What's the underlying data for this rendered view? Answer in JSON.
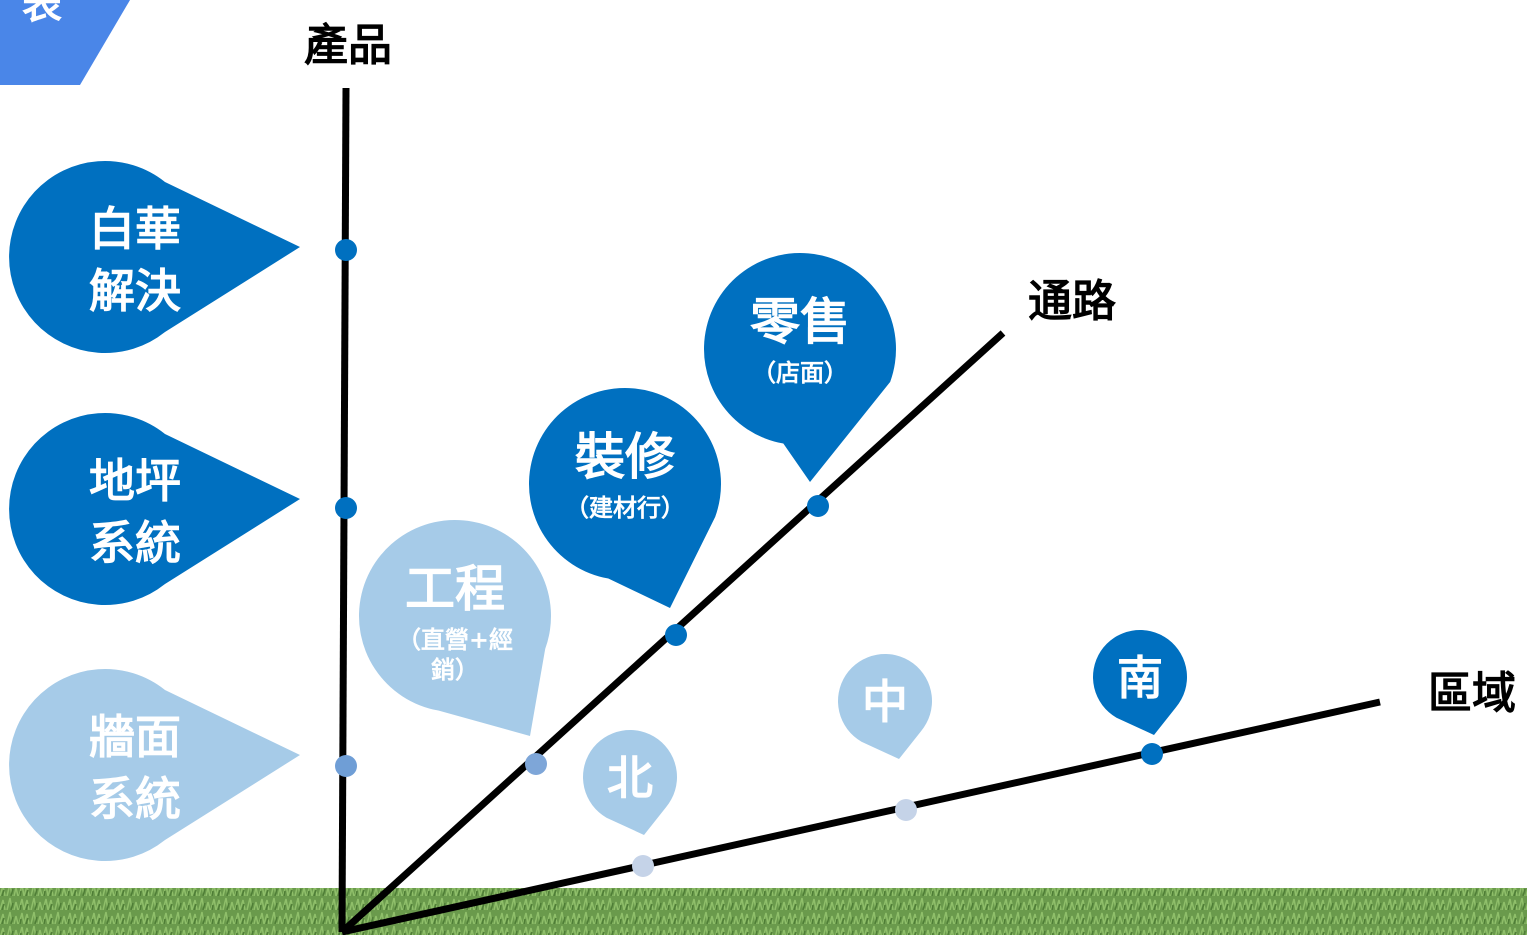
{
  "corner_tag": {
    "text": "表"
  },
  "axes": {
    "product": {
      "label": "產品"
    },
    "channel": {
      "label": "通路"
    },
    "region": {
      "label": "區域"
    }
  },
  "product_items": [
    {
      "lines": [
        "白華",
        "解決"
      ],
      "status": "active"
    },
    {
      "lines": [
        "地坪",
        "系統"
      ],
      "status": "active"
    },
    {
      "lines": [
        "牆面",
        "系統"
      ],
      "status": "inactive"
    }
  ],
  "channel_items": [
    {
      "title": "工程",
      "sub": [
        "（直營+經",
        "銷）"
      ],
      "status": "inactive"
    },
    {
      "title": "裝修",
      "sub": [
        "（建材行）"
      ],
      "status": "active"
    },
    {
      "title": "零售",
      "sub": [
        "（店面）"
      ],
      "status": "active"
    }
  ],
  "region_items": [
    {
      "title": "北",
      "status": "inactive"
    },
    {
      "title": "中",
      "status": "inactive"
    },
    {
      "title": "南",
      "status": "active"
    }
  ],
  "colors": {
    "active": "#0070c0",
    "inactive": "#a6cbe8",
    "dot_inactive_channel": "#7ea6d8",
    "dot_inactive_region": "#c5d3e8",
    "corner_tag": "#4a86e8",
    "axis": "#000000",
    "ground_dark": "#4e7d36",
    "ground_light": "#8fbf6a"
  }
}
